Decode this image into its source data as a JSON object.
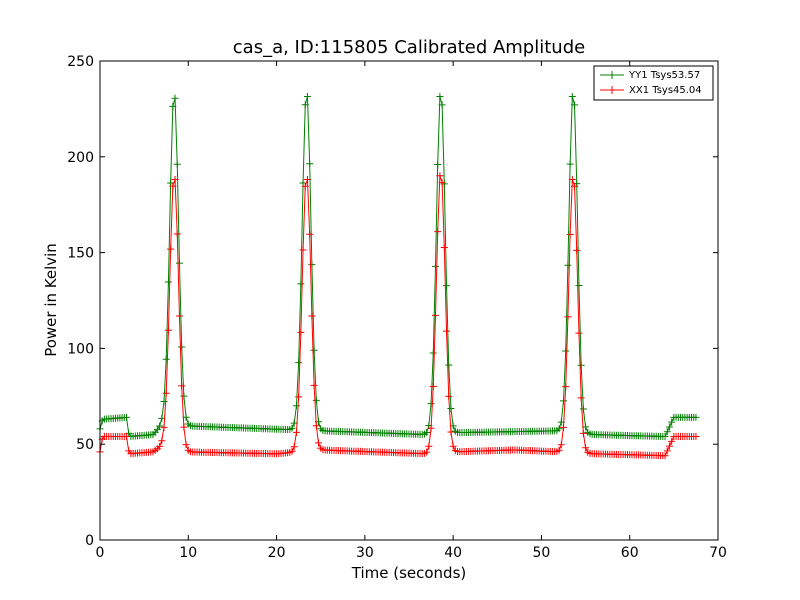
{
  "chart_data": {
    "type": "line",
    "title": "cas_a, ID:115805 Calibrated Amplitude",
    "xlabel": "Time (seconds)",
    "ylabel": "Power in Kelvin",
    "xlim": [
      0,
      70
    ],
    "ylim": [
      0,
      250
    ],
    "xticks": [
      "0",
      "10",
      "20",
      "30",
      "40",
      "50",
      "60",
      "70"
    ],
    "yticks": [
      "0",
      "50",
      "100",
      "150",
      "200",
      "250"
    ],
    "grid": false,
    "legend_position": "top-right",
    "series": [
      {
        "name": "YY1 Tsys53.57",
        "color": "#008000",
        "marker": "plus",
        "baseline": {
          "points": [
            [
              0,
              58
            ],
            [
              0.3,
              63
            ],
            [
              3,
              64
            ],
            [
              3.3,
              54
            ],
            [
              6,
              55
            ],
            [
              7,
              60
            ],
            [
              25,
              57
            ],
            [
              37,
              55
            ],
            [
              40,
              56
            ],
            [
              52,
              57
            ],
            [
              56,
              55
            ],
            [
              64,
              54
            ],
            [
              65,
              64
            ],
            [
              67.5,
              64
            ]
          ]
        },
        "peaks": [
          {
            "center": 8.4,
            "amplitude": 234
          },
          {
            "center": 23.4,
            "amplitude": 235
          },
          {
            "center": 38.6,
            "amplitude": 235
          },
          {
            "center": 53.6,
            "amplitude": 235
          }
        ]
      },
      {
        "name": "XX1 Tsys45.04",
        "color": "#ff0000",
        "marker": "plus",
        "baseline": {
          "points": [
            [
              0,
              46
            ],
            [
              0.3,
              54
            ],
            [
              3,
              54
            ],
            [
              3.3,
              45
            ],
            [
              6,
              46
            ],
            [
              7,
              49
            ],
            [
              9.5,
              46
            ],
            [
              20,
              45
            ],
            [
              25,
              47
            ],
            [
              37,
              45
            ],
            [
              40,
              46
            ],
            [
              47,
              47
            ],
            [
              52,
              46
            ],
            [
              56,
              45
            ],
            [
              64,
              44
            ],
            [
              65,
              54
            ],
            [
              67.5,
              54
            ]
          ]
        },
        "peaks": [
          {
            "center": 8.4,
            "amplitude": 191
          },
          {
            "center": 23.4,
            "amplitude": 191
          },
          {
            "center": 38.6,
            "amplitude": 193
          },
          {
            "center": 53.6,
            "amplitude": 191
          }
        ]
      }
    ]
  }
}
